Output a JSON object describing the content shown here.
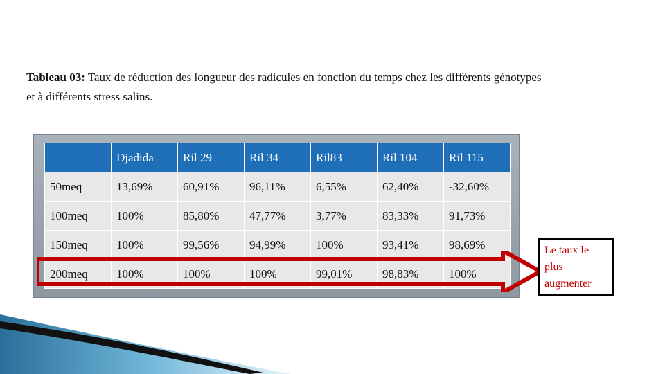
{
  "caption": {
    "label": "Tableau 03:",
    "text": " Taux de réduction des longueur des radicules en fonction du temps chez les différents génotypes et à différents stress salins."
  },
  "table": {
    "columns": [
      "",
      "Djadida",
      "Ril 29",
      "Ril 34",
      "Ril83",
      "Ril 104",
      "Ril 115"
    ],
    "rows": [
      [
        "50meq",
        "13,69%",
        "60,91%",
        "96,11%",
        "6,55%",
        "62,40%",
        "-32,60%"
      ],
      [
        "100meq",
        "100%",
        "85,80%",
        "47,77%",
        "3,77%",
        "83,33%",
        "91,73%"
      ],
      [
        "150meq",
        "100%",
        "99,56%",
        "94,99%",
        "100%",
        "93,41%",
        "98,69%"
      ],
      [
        "200meq",
        "100%",
        "100%",
        "100%",
        "99,01%",
        "98,83%",
        "100%"
      ]
    ]
  },
  "note": {
    "text": "Le taux le plus augmenter",
    "color": "#c00000"
  },
  "colors": {
    "header": "#1f6fb8",
    "cell": "#e8e8e8",
    "arrow": "#c00000",
    "frame": "#9aa3ad"
  }
}
